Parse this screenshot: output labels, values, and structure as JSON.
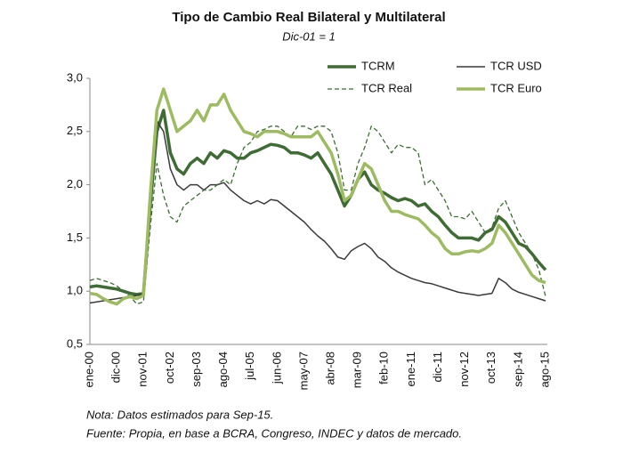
{
  "chart_data": {
    "type": "line",
    "title": "Tipo de Cambio Real Bilateral y Multilateral",
    "subtitle": "Dic-01 = 1",
    "notes": [
      "Nota: Datos estimados para Sep-15.",
      "Fuente: Propia, en base a BCRA, Congreso, INDEC y datos de mercado."
    ],
    "categories": [
      "ene-00",
      null,
      null,
      null,
      "dic-00",
      null,
      null,
      null,
      "nov-01",
      null,
      null,
      null,
      "oct-02",
      null,
      null,
      null,
      "sep-03",
      null,
      null,
      null,
      "ago-04",
      null,
      null,
      null,
      "jul-05",
      null,
      null,
      null,
      "jun-06",
      null,
      null,
      null,
      "may-07",
      null,
      null,
      null,
      "abr-08",
      null,
      null,
      null,
      "mar-09",
      null,
      null,
      null,
      "feb-10",
      null,
      null,
      null,
      "ene-11",
      null,
      null,
      null,
      "dic-11",
      null,
      null,
      null,
      "nov-12",
      null,
      null,
      null,
      "oct-13",
      null,
      null,
      null,
      "sep-14",
      null,
      null,
      null,
      "ago-15"
    ],
    "series": [
      {
        "name": "TCRM",
        "color": "#3f6b34",
        "width": 3.5,
        "dash": false,
        "values": [
          1.04,
          1.05,
          1.04,
          1.03,
          1.02,
          1.0,
          0.98,
          0.97,
          0.98,
          1.8,
          2.5,
          2.7,
          2.3,
          2.15,
          2.1,
          2.2,
          2.25,
          2.2,
          2.3,
          2.25,
          2.32,
          2.3,
          2.25,
          2.25,
          2.3,
          2.32,
          2.35,
          2.38,
          2.37,
          2.35,
          2.3,
          2.3,
          2.28,
          2.25,
          2.3,
          2.2,
          2.1,
          1.95,
          1.8,
          1.9,
          2.05,
          2.12,
          2.0,
          1.95,
          1.92,
          1.88,
          1.85,
          1.87,
          1.85,
          1.8,
          1.82,
          1.75,
          1.7,
          1.62,
          1.55,
          1.5,
          1.5,
          1.5,
          1.48,
          1.55,
          1.58,
          1.7,
          1.65,
          1.55,
          1.45,
          1.42,
          1.35,
          1.27,
          1.2
        ]
      },
      {
        "name": "TCR USD",
        "color": "#3a3a3a",
        "width": 1.5,
        "dash": false,
        "values": [
          0.89,
          0.9,
          0.91,
          0.92,
          0.93,
          0.94,
          0.95,
          0.96,
          0.97,
          1.8,
          2.6,
          2.5,
          2.15,
          2.0,
          1.95,
          2.0,
          2.0,
          1.95,
          2.0,
          2.0,
          2.02,
          1.95,
          1.9,
          1.85,
          1.82,
          1.85,
          1.82,
          1.86,
          1.85,
          1.8,
          1.75,
          1.7,
          1.65,
          1.58,
          1.52,
          1.47,
          1.4,
          1.32,
          1.3,
          1.38,
          1.42,
          1.45,
          1.4,
          1.32,
          1.28,
          1.22,
          1.18,
          1.15,
          1.12,
          1.1,
          1.08,
          1.07,
          1.05,
          1.03,
          1.01,
          0.99,
          0.98,
          0.97,
          0.96,
          0.97,
          0.98,
          1.12,
          1.08,
          1.02,
          0.99,
          0.97,
          0.95,
          0.93,
          0.91
        ]
      },
      {
        "name": "TCR Real",
        "color": "#3f6b34",
        "width": 1.3,
        "dash": true,
        "values": [
          1.1,
          1.12,
          1.1,
          1.08,
          1.05,
          1.0,
          0.95,
          0.88,
          0.9,
          1.6,
          2.2,
          1.9,
          1.7,
          1.65,
          1.8,
          1.85,
          1.9,
          1.95,
          1.95,
          2.0,
          2.05,
          2.0,
          2.2,
          2.35,
          2.4,
          2.5,
          2.52,
          2.55,
          2.55,
          2.5,
          2.45,
          2.55,
          2.55,
          2.52,
          2.55,
          2.55,
          2.5,
          2.3,
          1.95,
          1.95,
          2.2,
          2.35,
          2.55,
          2.5,
          2.4,
          2.3,
          2.38,
          2.35,
          2.35,
          2.3,
          2.0,
          2.05,
          1.95,
          1.85,
          1.7,
          1.7,
          1.68,
          1.75,
          1.65,
          1.55,
          1.6,
          1.78,
          1.85,
          1.7,
          1.55,
          1.45,
          1.35,
          1.2,
          0.95
        ]
      },
      {
        "name": "TCR Euro",
        "color": "#9dbb61",
        "width": 3.5,
        "dash": false,
        "values": [
          0.98,
          0.97,
          0.93,
          0.9,
          0.88,
          0.93,
          0.95,
          0.93,
          0.96,
          1.9,
          2.7,
          2.9,
          2.7,
          2.5,
          2.55,
          2.6,
          2.7,
          2.6,
          2.75,
          2.75,
          2.85,
          2.7,
          2.6,
          2.5,
          2.48,
          2.45,
          2.5,
          2.5,
          2.5,
          2.48,
          2.45,
          2.45,
          2.45,
          2.45,
          2.5,
          2.4,
          2.3,
          2.1,
          1.85,
          1.9,
          2.05,
          2.2,
          2.15,
          2.0,
          1.85,
          1.75,
          1.75,
          1.72,
          1.7,
          1.68,
          1.62,
          1.55,
          1.5,
          1.4,
          1.35,
          1.35,
          1.37,
          1.38,
          1.37,
          1.4,
          1.45,
          1.62,
          1.55,
          1.45,
          1.35,
          1.25,
          1.15,
          1.1,
          1.08
        ]
      }
    ],
    "ylim": [
      0.5,
      3.0
    ],
    "yticks": [
      {
        "value": 0.5,
        "label": "0,5"
      },
      {
        "value": 1.0,
        "label": "1,0"
      },
      {
        "value": 1.5,
        "label": "1,5"
      },
      {
        "value": 2.0,
        "label": "2,0"
      },
      {
        "value": 2.5,
        "label": "2,5"
      },
      {
        "value": 3.0,
        "label": "3,0"
      }
    ],
    "grid": false
  }
}
